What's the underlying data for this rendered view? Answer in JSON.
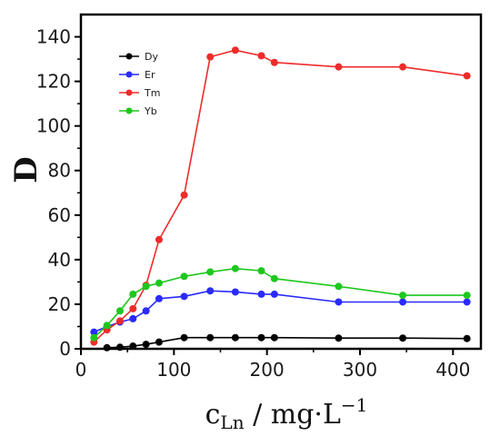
{
  "chart_data": {
    "type": "line",
    "title": "",
    "xlabel": {
      "main": "c",
      "sub": "Ln",
      "rest": " / mg·L",
      "sup": "−1"
    },
    "ylabel": "D",
    "xlim": [
      0,
      430
    ],
    "ylim": [
      0,
      150
    ],
    "xticks": [
      0,
      100,
      200,
      300,
      400
    ],
    "yticks": [
      0,
      20,
      40,
      60,
      80,
      100,
      120,
      140
    ],
    "grid": false,
    "legend_position": "top-left",
    "series": [
      {
        "name": "Dy",
        "color": "#000000",
        "x": [
          28,
          42,
          56,
          70,
          84,
          111,
          139,
          166,
          194,
          208,
          277,
          346,
          415
        ],
        "y": [
          0.5,
          0.7,
          1.2,
          2.0,
          3.0,
          5.0,
          5.0,
          5.0,
          5.0,
          5.0,
          4.8,
          4.8,
          4.6
        ]
      },
      {
        "name": "Er",
        "color": "#2a2aff",
        "x": [
          14,
          28,
          42,
          56,
          70,
          84,
          111,
          139,
          166,
          194,
          208,
          277,
          346,
          415
        ],
        "y": [
          7.5,
          10.0,
          12.0,
          13.5,
          17.0,
          22.5,
          23.5,
          26.0,
          25.5,
          24.5,
          24.5,
          21.0,
          21.0,
          21.0
        ]
      },
      {
        "name": "Tm",
        "color": "#ee2b2b",
        "x": [
          14,
          28,
          42,
          56,
          70,
          84,
          111,
          139,
          166,
          194,
          208,
          277,
          346,
          415
        ],
        "y": [
          3.0,
          8.5,
          12.5,
          18.0,
          28.5,
          49.0,
          69.0,
          131.0,
          134.0,
          131.5,
          128.5,
          126.5,
          126.5,
          122.5
        ]
      },
      {
        "name": "Yb",
        "color": "#1ec71e",
        "x": [
          14,
          28,
          42,
          56,
          70,
          84,
          111,
          139,
          166,
          194,
          208,
          277,
          346,
          415
        ],
        "y": [
          5.0,
          10.5,
          17.0,
          24.5,
          28.0,
          29.5,
          32.5,
          34.5,
          36.0,
          35.0,
          31.5,
          28.0,
          24.0,
          24.0
        ]
      }
    ]
  }
}
